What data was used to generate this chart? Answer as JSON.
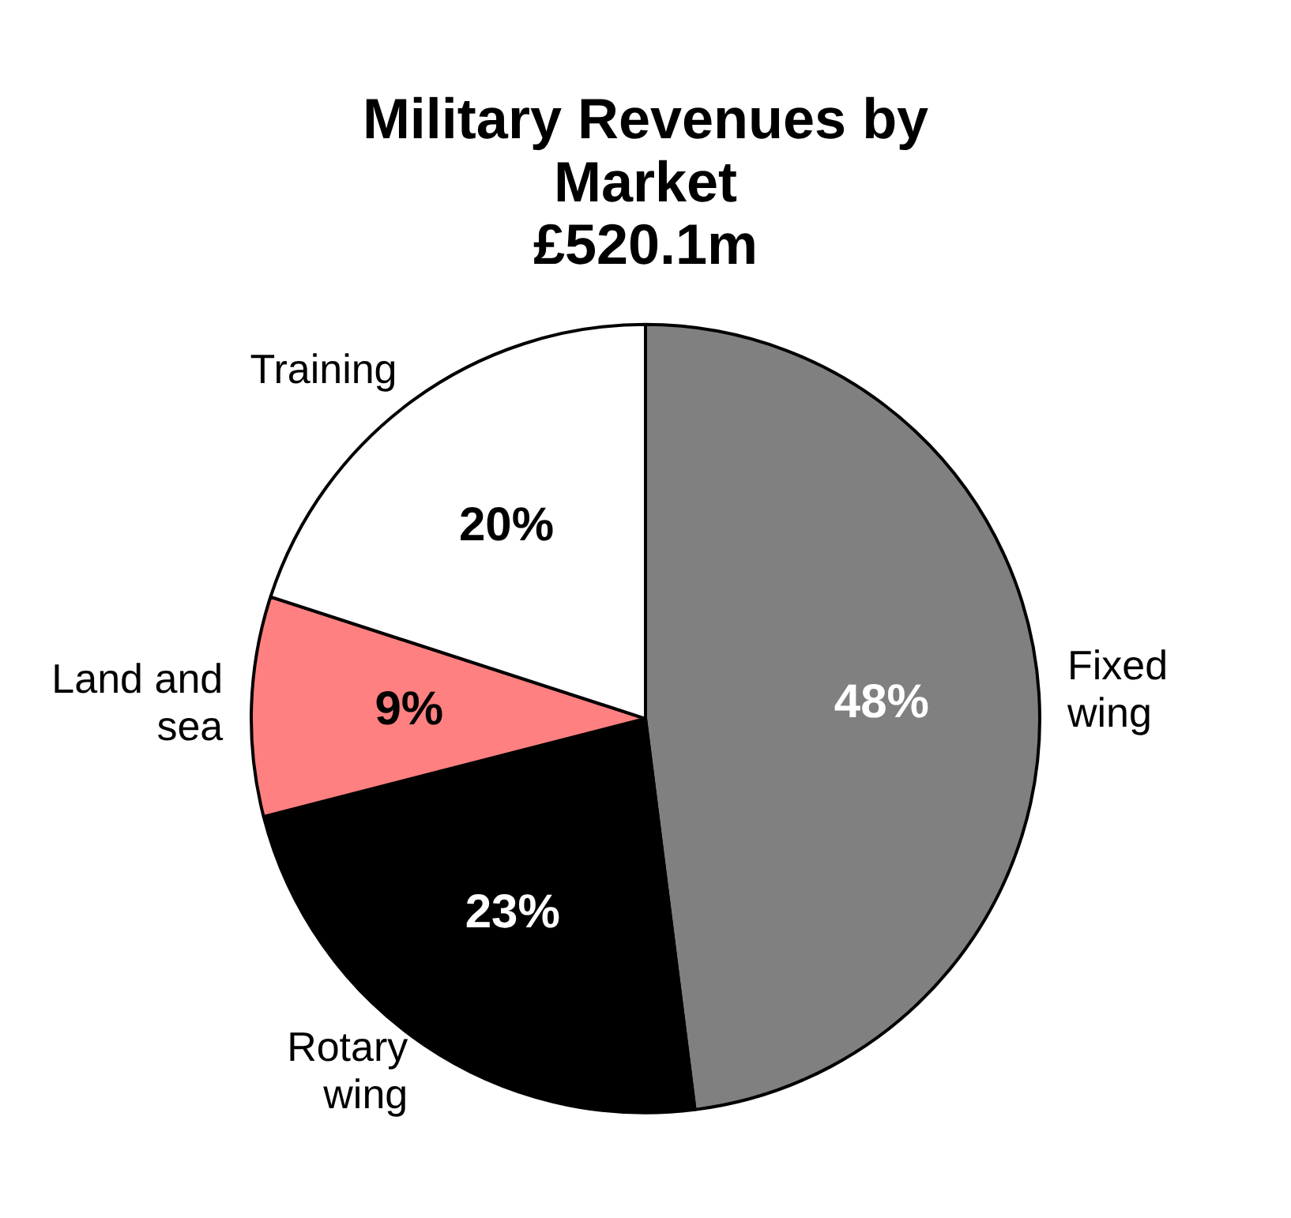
{
  "chart_data": {
    "type": "pie",
    "title": "Military Revenues by Market",
    "subtitle": "£520.1m",
    "categories": [
      "Fixed wing",
      "Rotary wing",
      "Land and sea",
      "Training"
    ],
    "values": [
      48,
      23,
      9,
      20
    ],
    "colors": [
      "#808080",
      "#000000",
      "#ff8080",
      "#ffffff"
    ],
    "value_labels": [
      "48%",
      "23%",
      "9%",
      "20%"
    ],
    "legend": false
  }
}
